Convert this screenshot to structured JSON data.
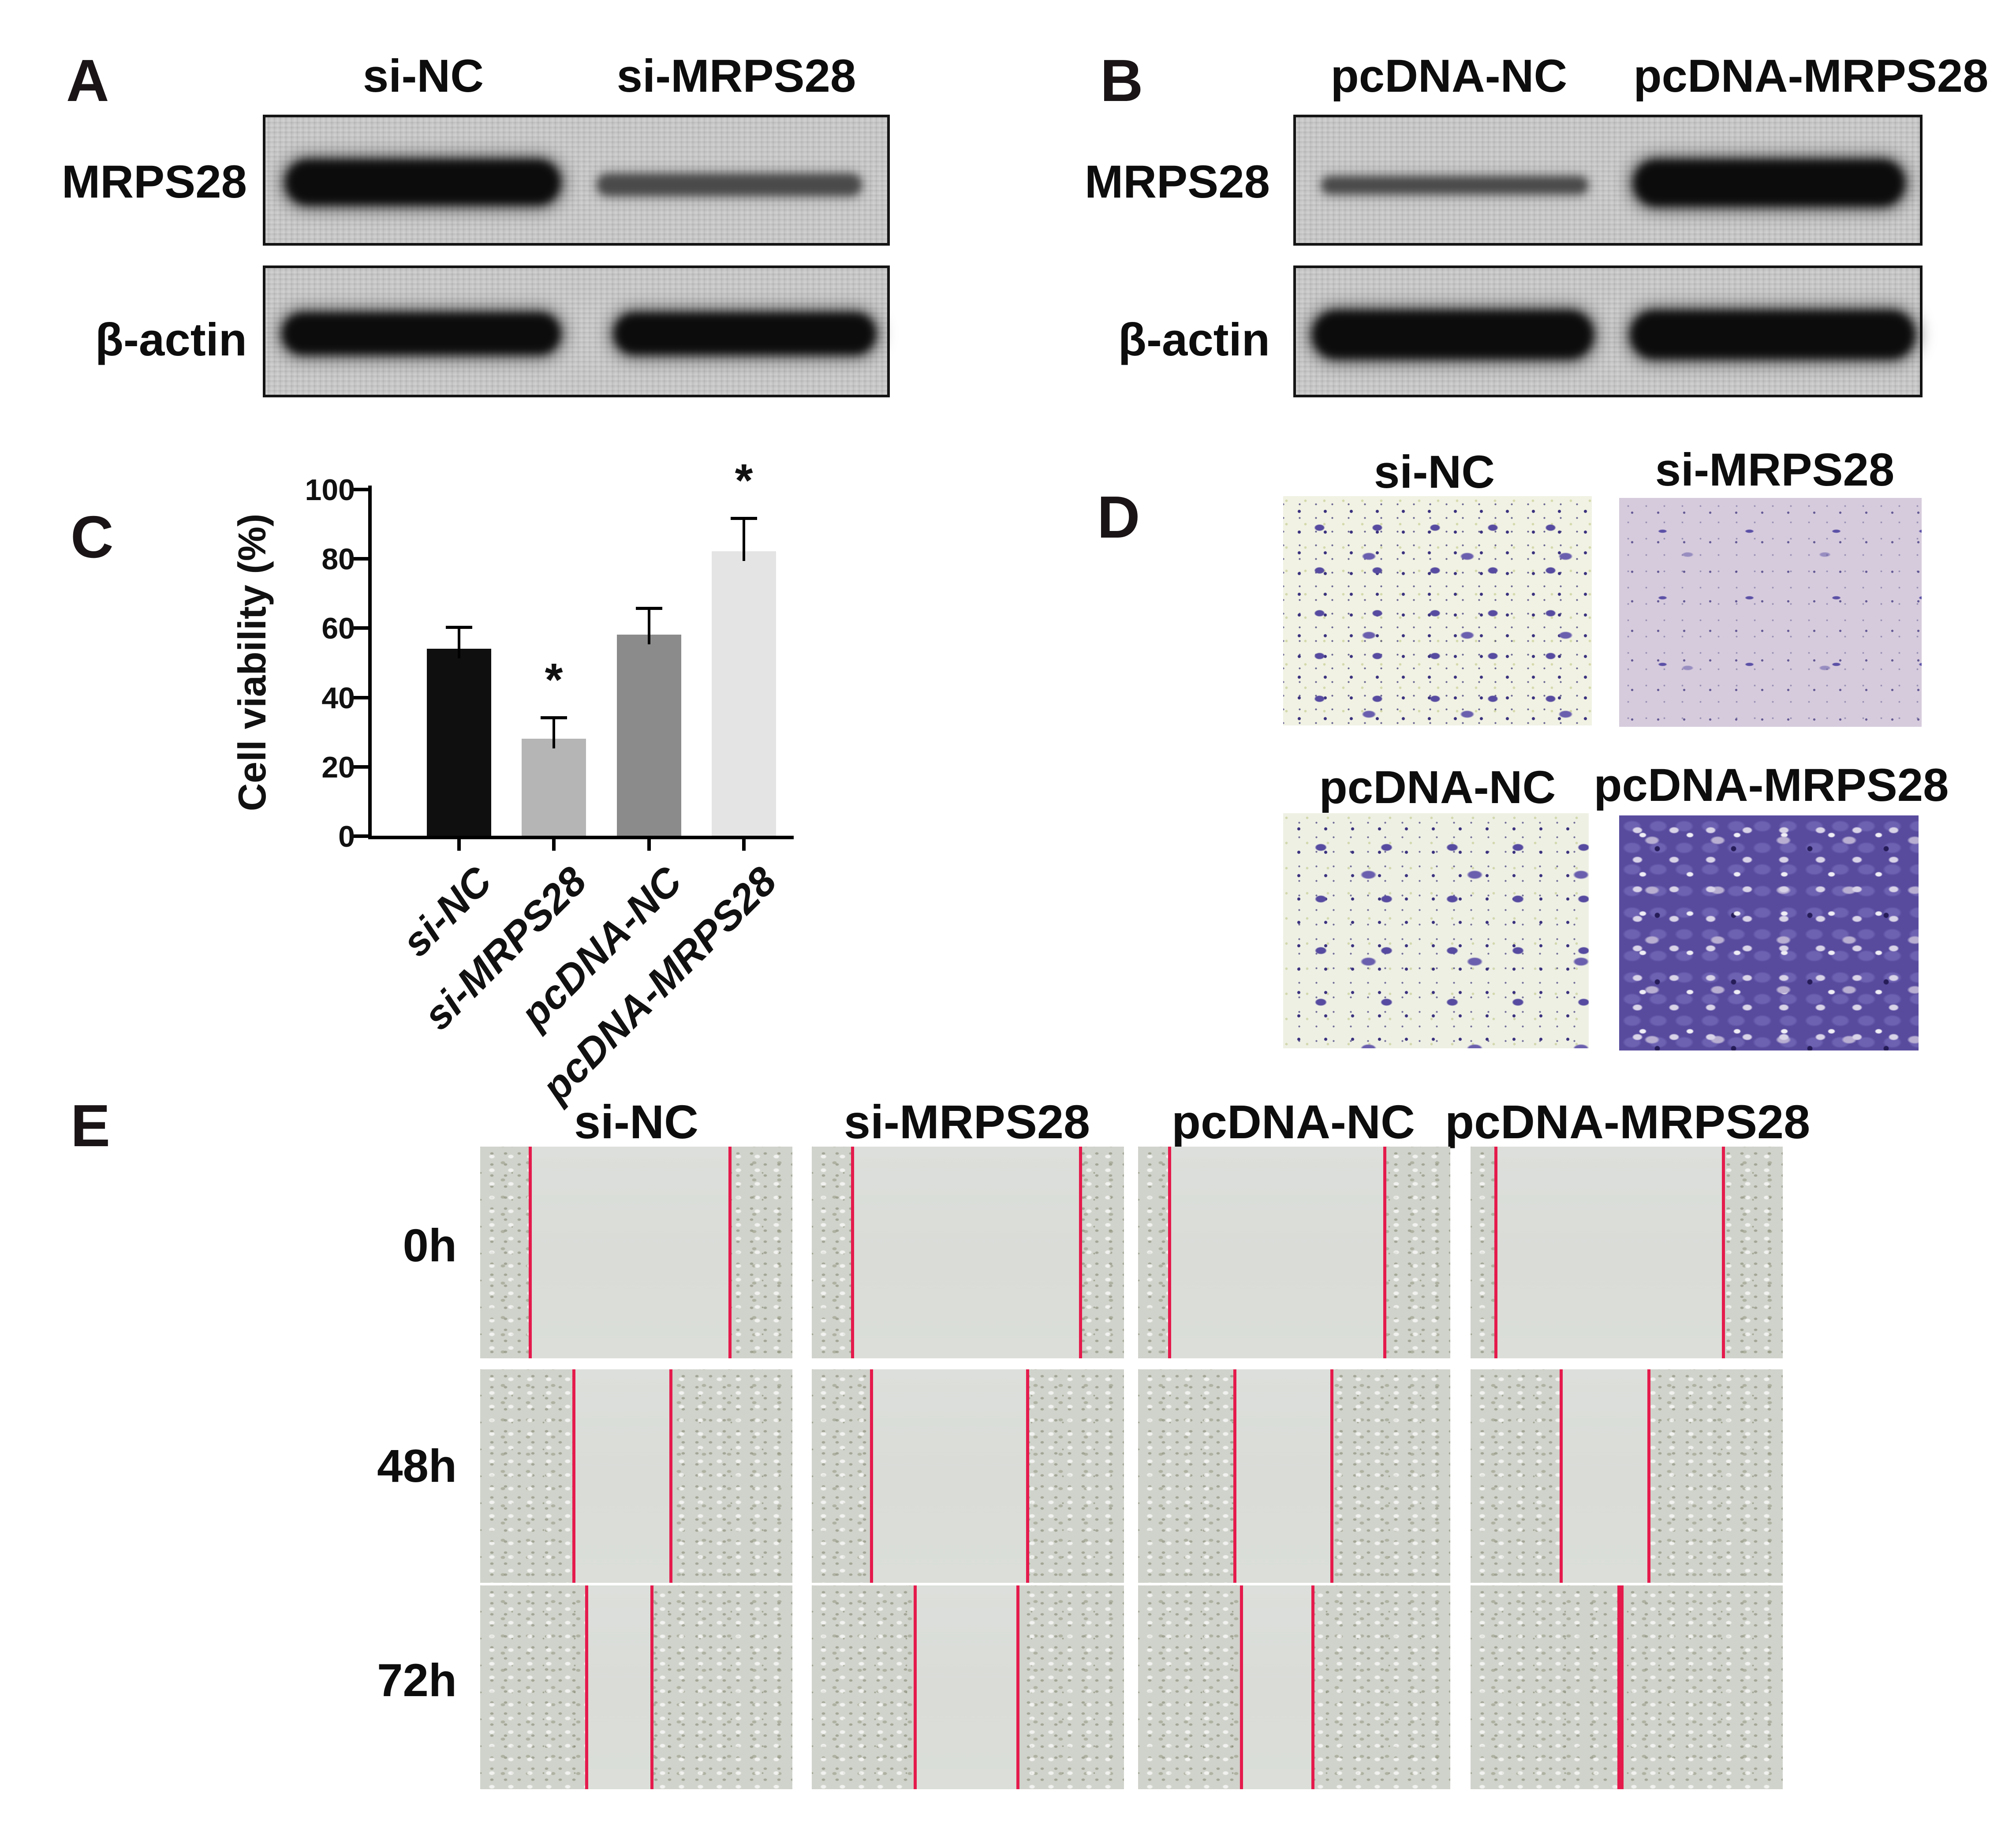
{
  "panels": {
    "A": {
      "label": "A",
      "col_headers": [
        "si-NC",
        "si-MRPS28"
      ],
      "row_labels": [
        "MRPS28",
        "β-actin"
      ],
      "bands": [
        [
          "strong",
          "weak"
        ],
        [
          "strong",
          "strong"
        ]
      ]
    },
    "B": {
      "label": "B",
      "col_headers": [
        "pcDNA-NC",
        "pcDNA-MRPS28"
      ],
      "row_labels": [
        "MRPS28",
        "β-actin"
      ],
      "bands": [
        [
          "weak",
          "strong"
        ],
        [
          "strong",
          "strong"
        ]
      ]
    },
    "C": {
      "label": "C"
    },
    "D": {
      "label": "D",
      "row1_headers": [
        "si-NC",
        "si-MRPS28"
      ],
      "row2_headers": [
        "pcDNA-NC",
        "pcDNA-MRPS28"
      ],
      "cell_density": [
        "moderate",
        "sparse",
        "moderate",
        "dense"
      ],
      "stain_color": "#5a4fa4"
    },
    "E": {
      "label": "E",
      "col_headers": [
        "si-NC",
        "si-MRPS28",
        "pcDNA-NC",
        "pcDNA-MRPS28"
      ],
      "row_labels": [
        "0h",
        "48h",
        "72h"
      ],
      "line_color": "#e51a4c",
      "wound_lines": [
        [
          [
            0.16,
            0.8
          ],
          [
            0.13,
            0.86
          ],
          [
            0.1,
            0.79
          ],
          [
            0.08,
            0.81
          ]
        ],
        [
          [
            0.3,
            0.61
          ],
          [
            0.19,
            0.69
          ],
          [
            0.31,
            0.62
          ],
          [
            0.29,
            0.57
          ]
        ],
        [
          [
            0.34,
            0.55
          ],
          [
            0.33,
            0.66
          ],
          [
            0.33,
            0.56
          ],
          [
            0.48
          ]
        ]
      ]
    }
  },
  "chart_data": {
    "type": "bar",
    "categories": [
      "si-NC",
      "si-MRPS28",
      "pcDNA-NC",
      "pcDNA-MRPS28"
    ],
    "values": [
      54,
      28,
      58,
      82
    ],
    "errors_upper": [
      6.5,
      6.5,
      8,
      10
    ],
    "significance": [
      "",
      "*",
      "",
      "*"
    ],
    "title": "",
    "xlabel": "",
    "ylabel": "Cell viability (%)",
    "ylim": [
      0,
      100
    ],
    "yticks": [
      0,
      20,
      40,
      60,
      80,
      100
    ],
    "grid": false,
    "legend": "none",
    "bar_colors": [
      "#0f0f0f",
      "#b5b5b5",
      "#8b8b8b",
      "#e4e4e4"
    ]
  }
}
